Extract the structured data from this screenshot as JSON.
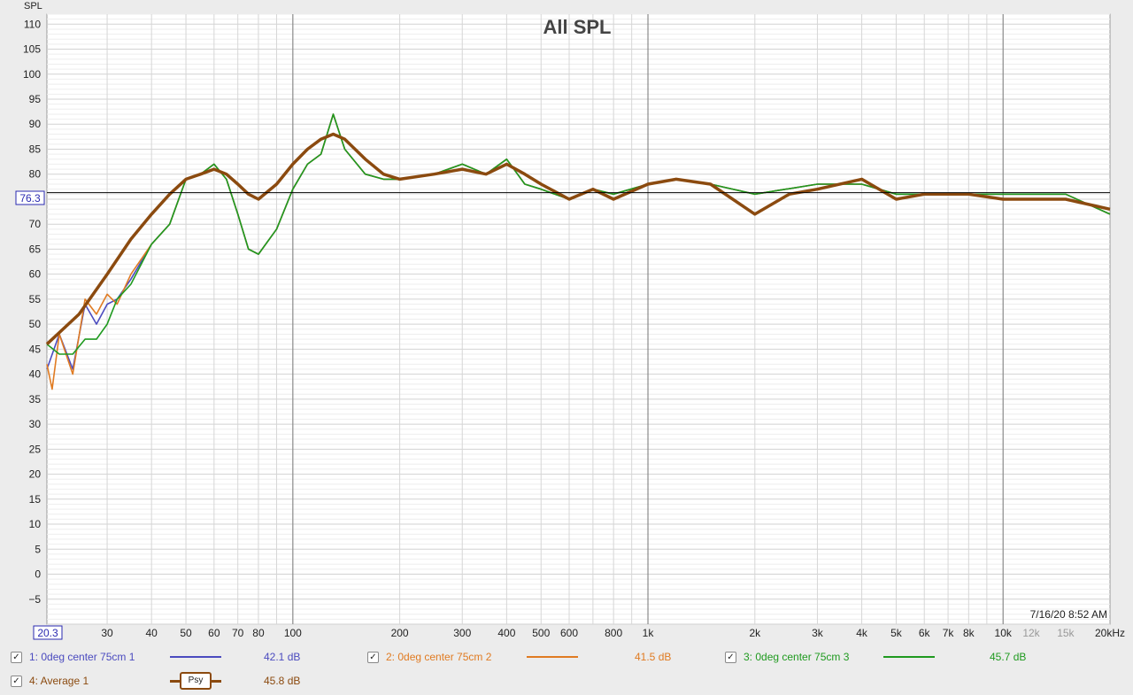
{
  "chart_data": {
    "type": "line",
    "title": "All SPL",
    "ylabel": "SPL",
    "x_scale": "log",
    "xlim": [
      20.3,
      20000
    ],
    "ylim": [
      -10,
      112
    ],
    "grid": true,
    "y_ticks": [
      110,
      105,
      100,
      95,
      90,
      85,
      80,
      75,
      70,
      65,
      60,
      55,
      50,
      45,
      40,
      35,
      30,
      25,
      20,
      15,
      10,
      5,
      0,
      -5
    ],
    "y_tick_labels": [
      "110",
      "105",
      "100",
      "95",
      "90",
      "85",
      "80",
      "",
      "70",
      "65",
      "60",
      "55",
      "50",
      "45",
      "40",
      "35",
      "30",
      "25",
      "20",
      "15",
      "10",
      "5",
      "0",
      "−5"
    ],
    "x_ticks": [
      30,
      40,
      50,
      60,
      70,
      80,
      100,
      200,
      300,
      400,
      500,
      600,
      800,
      1000,
      2000,
      3000,
      4000,
      5000,
      6000,
      7000,
      8000,
      10000,
      12000,
      15000,
      20000
    ],
    "x_tick_labels": [
      "30",
      "40",
      "50",
      "60",
      "70",
      "80",
      "100",
      "200",
      "300",
      "400",
      "500",
      "600",
      "800",
      "1k",
      "2k",
      "3k",
      "4k",
      "5k",
      "6k",
      "7k",
      "8k",
      "10k",
      "12k",
      "15k",
      "20kHz"
    ],
    "x_start_label": "20.3",
    "cursor_y": 76.3,
    "cursor_label": "76.3",
    "timestamp": "7/16/20 8:52 AM",
    "series": [
      {
        "name": "1: 0deg center 75cm 1",
        "color": "#4b4bbf",
        "legend_value": "42.1 dB",
        "x": [
          20.3,
          22,
          24,
          26,
          28,
          30,
          32,
          35,
          40,
          45,
          50,
          55,
          60,
          65,
          70,
          75,
          80,
          90,
          100,
          110,
          120,
          130,
          140,
          160,
          180,
          200,
          250,
          300,
          350,
          400,
          450,
          500,
          600,
          700,
          800,
          1000,
          1200,
          1500,
          2000,
          3000,
          4000,
          5000,
          6000,
          8000,
          10000,
          15000,
          20000
        ],
        "y": [
          41,
          48,
          41,
          54,
          50,
          54,
          55,
          59,
          66,
          70,
          79,
          80,
          82,
          79,
          72,
          65,
          64,
          69,
          77,
          82,
          84,
          92,
          85,
          80,
          79,
          79,
          80,
          82,
          80,
          83,
          78,
          77,
          75,
          77,
          76,
          78,
          79,
          78,
          76,
          78,
          78,
          76,
          76,
          76,
          76,
          76,
          72
        ]
      },
      {
        "name": "2: 0deg center 75cm 2",
        "color": "#e07b22",
        "legend_value": "41.5 dB",
        "x": [
          20.3,
          21,
          22,
          24,
          26,
          28,
          30,
          32,
          35,
          40,
          45,
          50,
          55,
          60,
          65,
          70,
          75,
          80,
          90,
          100,
          110,
          120,
          130,
          140,
          160,
          180,
          200,
          250,
          300,
          350,
          400,
          450,
          500,
          600,
          700,
          800,
          1000,
          1200,
          1500,
          2000,
          3000,
          4000,
          5000,
          6000,
          8000,
          10000,
          15000,
          20000
        ],
        "y": [
          42,
          37,
          48,
          40,
          55,
          52,
          56,
          54,
          60,
          66,
          70,
          79,
          80,
          82,
          79,
          72,
          65,
          64,
          69,
          77,
          82,
          84,
          92,
          85,
          80,
          79,
          79,
          80,
          82,
          80,
          83,
          78,
          77,
          75,
          77,
          76,
          78,
          79,
          78,
          76,
          78,
          78,
          76,
          76,
          76,
          76,
          76,
          72
        ]
      },
      {
        "name": "3: 0deg center 75cm 3",
        "color": "#1f9a1f",
        "legend_value": "45.7 dB",
        "x": [
          20.3,
          22,
          24,
          26,
          28,
          30,
          32,
          35,
          40,
          45,
          50,
          55,
          60,
          65,
          70,
          75,
          80,
          90,
          100,
          110,
          120,
          130,
          140,
          160,
          180,
          200,
          250,
          300,
          350,
          400,
          450,
          500,
          600,
          700,
          800,
          1000,
          1200,
          1500,
          2000,
          3000,
          4000,
          5000,
          6000,
          8000,
          10000,
          15000,
          20000
        ],
        "y": [
          46,
          44,
          44,
          47,
          47,
          50,
          55,
          58,
          66,
          70,
          79,
          80,
          82,
          79,
          72,
          65,
          64,
          69,
          77,
          82,
          84,
          92,
          85,
          80,
          79,
          79,
          80,
          82,
          80,
          83,
          78,
          77,
          75,
          77,
          76,
          78,
          79,
          78,
          76,
          78,
          78,
          76,
          76,
          76,
          76,
          76,
          72
        ]
      },
      {
        "name": "4: Average 1",
        "color": "#8b4a0f",
        "legend_value": "45.8 dB",
        "legend_tag": "Psy",
        "x": [
          20.3,
          25,
          30,
          35,
          40,
          45,
          50,
          55,
          60,
          65,
          70,
          75,
          80,
          90,
          100,
          110,
          120,
          130,
          140,
          160,
          180,
          200,
          250,
          300,
          350,
          400,
          450,
          500,
          600,
          700,
          800,
          1000,
          1200,
          1500,
          2000,
          2500,
          3000,
          4000,
          5000,
          6000,
          8000,
          10000,
          15000,
          20000
        ],
        "y": [
          46,
          52,
          60,
          67,
          72,
          76,
          79,
          80,
          81,
          80,
          78,
          76,
          75,
          78,
          82,
          85,
          87,
          88,
          87,
          83,
          80,
          79,
          80,
          81,
          80,
          82,
          80,
          78,
          75,
          77,
          75,
          78,
          79,
          78,
          72,
          76,
          77,
          79,
          75,
          76,
          76,
          75,
          75,
          73
        ]
      }
    ]
  }
}
